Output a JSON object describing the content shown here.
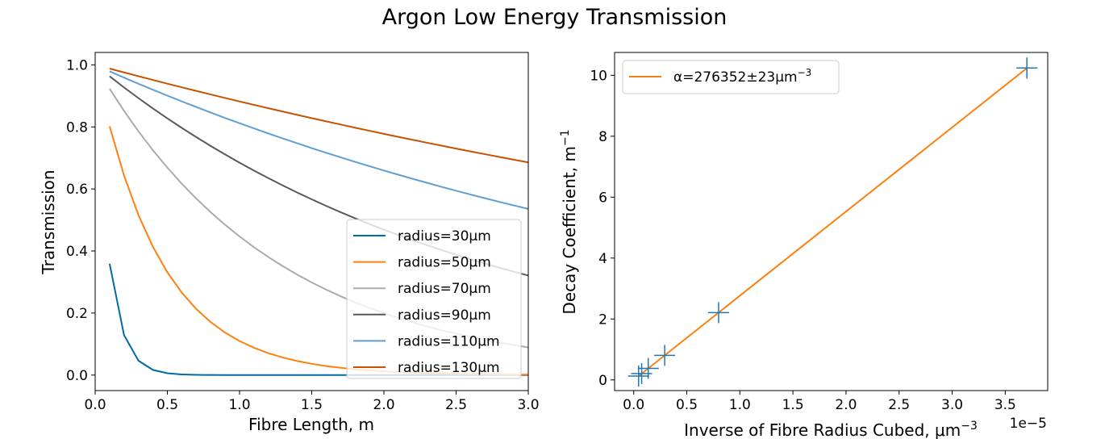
{
  "figure": {
    "title": "Argon Low Energy Transmission"
  },
  "chart_data": [
    {
      "type": "line",
      "xlabel": "Fibre Length, m",
      "ylabel": "Transmission",
      "xlim": [
        0.0,
        3.0
      ],
      "ylim": [
        -0.05,
        1.04
      ],
      "xticks": [
        0.0,
        0.5,
        1.0,
        1.5,
        2.0,
        2.5,
        3.0
      ],
      "xtick_labels": [
        "0.0",
        "0.5",
        "1.0",
        "1.5",
        "2.0",
        "2.5",
        "3.0"
      ],
      "yticks": [
        0.0,
        0.2,
        0.4,
        0.6,
        0.8,
        1.0
      ],
      "ytick_labels": [
        "0.0",
        "0.2",
        "0.4",
        "0.6",
        "0.8",
        "1.0"
      ],
      "grid": false,
      "legend_position": "lower-right",
      "x": [
        0.1,
        0.2,
        0.3,
        0.4,
        0.5,
        0.6,
        0.7,
        0.8,
        0.9,
        1.0,
        1.1,
        1.2,
        1.3,
        1.4,
        1.5,
        1.6,
        1.7,
        1.8,
        1.9,
        2.0,
        2.1,
        2.2,
        2.3,
        2.4,
        2.5,
        2.6,
        2.7,
        2.8,
        2.9,
        3.0
      ],
      "series": [
        {
          "name": "radius=30μm",
          "color": "#006ba4",
          "decay": 10.24,
          "start": 0.359
        },
        {
          "name": "radius=50μm",
          "color": "#ff800e",
          "decay": 2.21,
          "start": 0.802
        },
        {
          "name": "radius=70μm",
          "color": "#ababab",
          "decay": 0.806,
          "start": 0.923
        },
        {
          "name": "radius=90μm",
          "color": "#595959",
          "decay": 0.379,
          "start": 0.963
        },
        {
          "name": "radius=110μm",
          "color": "#5f9ed1",
          "decay": 0.208,
          "start": 0.979
        },
        {
          "name": "radius=130μm",
          "color": "#c85200",
          "decay": 0.126,
          "start": 0.988
        }
      ]
    },
    {
      "type": "scatter",
      "xlabel": "Inverse of Fibre Radius Cubed, μm",
      "xlabel_sup": "−3",
      "ylabel": "Decay Coefficient, m",
      "ylabel_sup": "−1",
      "offset_text": "1e−5",
      "xlim": [
        -0.18,
        3.9
      ],
      "ylim": [
        -0.35,
        10.75
      ],
      "xticks": [
        0.0,
        0.5,
        1.0,
        1.5,
        2.0,
        2.5,
        3.0,
        3.5
      ],
      "xtick_labels": [
        "0.0",
        "0.5",
        "1.0",
        "1.5",
        "2.0",
        "2.5",
        "3.0",
        "3.5"
      ],
      "yticks": [
        0,
        2,
        4,
        6,
        8,
        10
      ],
      "ytick_labels": [
        "0",
        "2",
        "4",
        "6",
        "8",
        "10"
      ],
      "grid": false,
      "legend_position": "top-left",
      "points": {
        "x": [
          3.704,
          0.8,
          0.292,
          0.137,
          0.075,
          0.046
        ],
        "y": [
          10.24,
          2.21,
          0.806,
          0.379,
          0.208,
          0.126
        ],
        "marker": "+",
        "color": "#1f77b4"
      },
      "fit": {
        "label_prefix": "α=276352±23μm",
        "label_sup": "−3",
        "slope": 276352,
        "x_range": [
          0.046,
          3.704
        ],
        "color": "#ff7f0e"
      }
    }
  ]
}
